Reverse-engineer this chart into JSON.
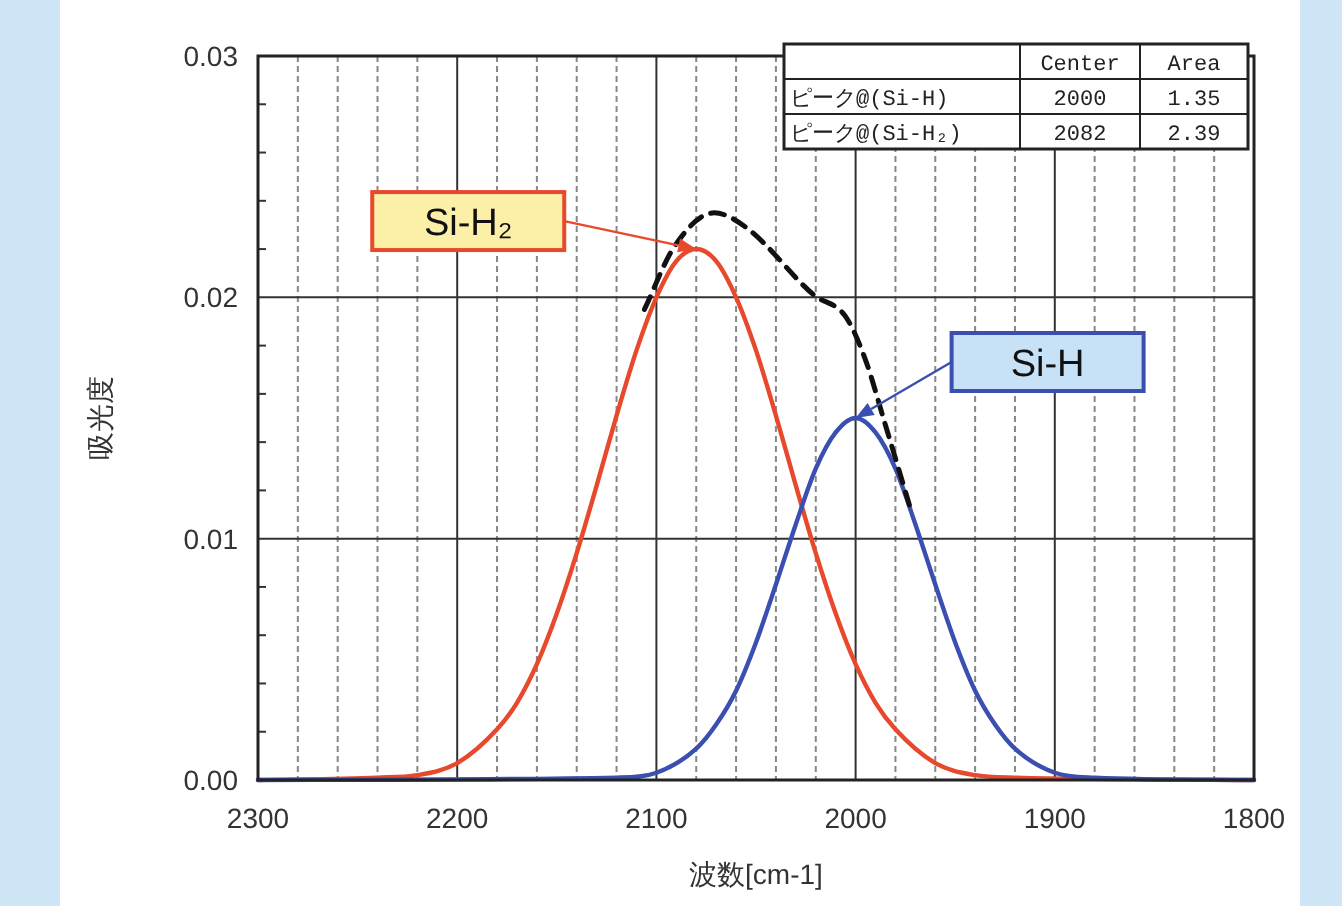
{
  "chart_data": {
    "type": "line",
    "xlabel": "波数[cm-1]",
    "ylabel": "吸光度",
    "xlim": [
      2300,
      1800
    ],
    "xticks": [
      2300,
      2200,
      2100,
      2000,
      1900,
      1800
    ],
    "ylim": [
      0,
      0.03
    ],
    "yticks": [
      {
        "value": 0,
        "label": "0.00"
      },
      {
        "value": 0.01,
        "label": "0.01"
      },
      {
        "value": 0.02,
        "label": "0.02"
      },
      {
        "value": 0.03,
        "label": "0.03"
      }
    ],
    "grid": true,
    "series": [
      {
        "color": "#e8482c",
        "x": [
          2300,
          2240,
          2220,
          2200,
          2180,
          2170,
          2160,
          2150,
          2140,
          2130,
          2120,
          2110,
          2100,
          2090,
          2080,
          2070,
          2060,
          2050,
          2040,
          2030,
          2020,
          2010,
          2000,
          1990,
          1980,
          1960,
          1940,
          1920,
          1800
        ],
        "values": [
          0,
          0.0001,
          0.0002,
          0.0007,
          0.0021,
          0.0032,
          0.0048,
          0.0069,
          0.0094,
          0.0122,
          0.0151,
          0.0178,
          0.02,
          0.0215,
          0.022,
          0.0215,
          0.02,
          0.0178,
          0.0151,
          0.0122,
          0.0094,
          0.0069,
          0.0048,
          0.0032,
          0.0021,
          0.0007,
          0.0002,
          0.0001,
          0
        ]
      },
      {
        "color": "#3a4fb0",
        "x": [
          2300,
          2120,
          2100,
          2080,
          2070,
          2060,
          2050,
          2040,
          2030,
          2020,
          2010,
          2000,
          1990,
          1980,
          1970,
          1960,
          1950,
          1940,
          1930,
          1920,
          1900,
          1880,
          1800
        ],
        "values": [
          0,
          0.0001,
          0.0003,
          0.0013,
          0.0023,
          0.0037,
          0.0057,
          0.0081,
          0.0106,
          0.0129,
          0.0144,
          0.015,
          0.0144,
          0.0129,
          0.0106,
          0.0081,
          0.0057,
          0.0037,
          0.0023,
          0.0013,
          0.0003,
          0.0001,
          0
        ]
      },
      {
        "color": "#111111",
        "line_style": "dashed",
        "x": [
          2106,
          2091,
          2071,
          2055,
          2021,
          2005,
          1995,
          1985,
          1973
        ],
        "values": [
          0.0195,
          0.0221,
          0.0235,
          0.0229,
          0.0201,
          0.0192,
          0.0174,
          0.0147,
          0.0114
        ]
      }
    ],
    "annotations": [
      "Si-H₂",
      "Si-H",
      "Center",
      "Area",
      "ピーク@(Si-H)",
      "2000",
      "1.35",
      "ピーク@(Si-H₂)",
      "2082",
      "2.39"
    ]
  }
}
